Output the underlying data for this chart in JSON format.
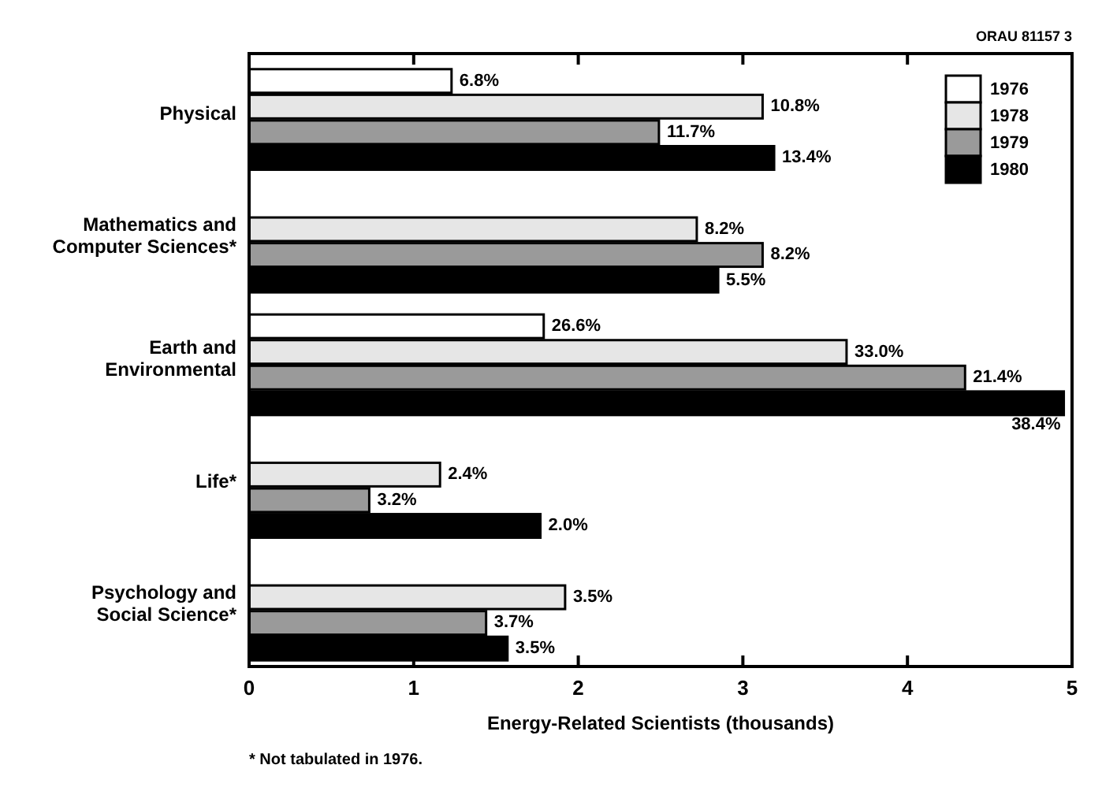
{
  "chart_data": {
    "type": "bar",
    "orientation": "horizontal",
    "xlabel": "Energy-Related Scientists (thousands)",
    "categories": [
      "Physical",
      "Mathematics and Computer Sciences*",
      "Earth and Environmental",
      "Life*",
      "Psychology and Social Science*"
    ],
    "series": [
      {
        "name": "1976",
        "color": "#ffffff",
        "values": [
          1.23,
          null,
          1.79,
          null,
          null
        ]
      },
      {
        "name": "1978",
        "color": "#e6e6e6",
        "values": [
          3.12,
          2.72,
          3.63,
          1.16,
          1.92
        ]
      },
      {
        "name": "1979",
        "color": "#9a9a9a",
        "values": [
          2.49,
          3.12,
          4.35,
          0.73,
          1.44
        ]
      },
      {
        "name": "1980",
        "color": "#000000",
        "values": [
          3.19,
          2.85,
          4.95,
          1.77,
          1.57
        ]
      }
    ],
    "xlim": [
      0,
      5
    ],
    "xticks": [
      0,
      1,
      2,
      3,
      4,
      5
    ],
    "legend": "top right",
    "grid": false,
    "annotations": [
      "ORAU 81157 3",
      "* Not tabulated in 1976.",
      {
        "text": "6.8%",
        "x": 1.23,
        "y": "Physical"
      },
      {
        "text": "10.8%",
        "x": 3.12,
        "y": "Physical"
      },
      {
        "text": "11.7%",
        "x": 2.49,
        "y": "Physical"
      },
      "13.4%",
      {
        "text": "8.2%",
        "x": 2.72,
        "y": "Mathematics and Computer Sciences*"
      },
      {
        "text": "8.2%",
        "x": 3.12,
        "y": "Mathematics and Computer Sciences*"
      },
      {
        "text": "5.5%",
        "x": 2.85,
        "y": "Mathematics and Computer Sciences*"
      },
      {
        "text": "26.6%",
        "x": 1.79,
        "y": "Earth and Environmental"
      },
      {
        "text": "33.0%",
        "x": 3.63,
        "y": "Earth and Environmental"
      },
      {
        "text": "21.4%",
        "x": 4.35,
        "y": "Earth and Environmental"
      },
      "38.4%",
      {
        "text": "2.4%",
        "x": 1.16,
        "y": "Life*"
      },
      {
        "text": "3.2%",
        "x": 0.73,
        "y": "Life*"
      },
      "2.0%",
      {
        "text": "3.5%",
        "x": 1.92,
        "y": "Psychology and Social Science*"
      },
      {
        "text": "3.7%",
        "x": 1.44,
        "y": "Psychology and Social Science*"
      },
      {
        "text": "3.5%",
        "x": 1.57,
        "y": "Psychology and Social Science*"
      }
    ]
  }
}
